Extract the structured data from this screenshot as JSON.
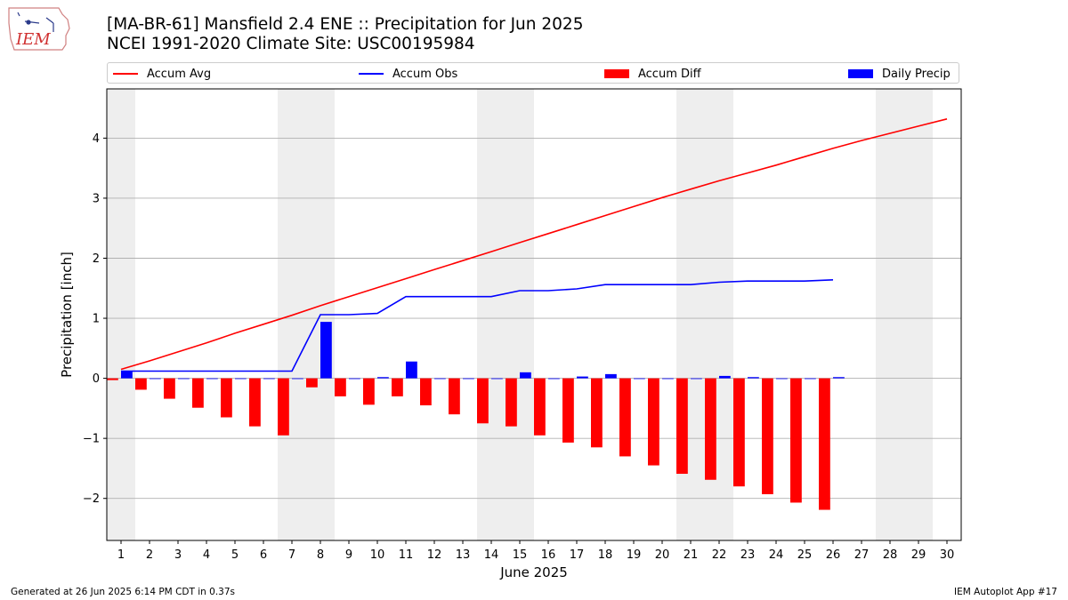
{
  "title": {
    "line1": "[MA-BR-61] Mansfield 2.4 ENE :: Precipitation for Jun 2025",
    "line2": "NCEI 1991-2020 Climate Site: USC00195984"
  },
  "logo_text": "IEM",
  "footer": {
    "left": "Generated at 26 Jun 2025 6:14 PM CDT in 0.37s",
    "right": "IEM Autoplot App #17"
  },
  "colors": {
    "accum_avg": "#ff0000",
    "accum_obs": "#0000ff",
    "accum_diff": "#ff0000",
    "daily_precip": "#0000ff",
    "weekend_shade": "#eeeeee",
    "grid": "#b0b0b0"
  },
  "chart_data": {
    "type": "bar",
    "xlabel": "June 2025",
    "ylabel": "Precipitation [inch]",
    "xlim": [
      0.5,
      30.5
    ],
    "ylim": [
      -2.7,
      4.82
    ],
    "yticks": [
      -2,
      -1,
      0,
      1,
      2,
      3,
      4
    ],
    "ytick_labels": [
      "−2",
      "−1",
      "0",
      "1",
      "2",
      "3",
      "4"
    ],
    "x": [
      1,
      2,
      3,
      4,
      5,
      6,
      7,
      8,
      9,
      10,
      11,
      12,
      13,
      14,
      15,
      16,
      17,
      18,
      19,
      20,
      21,
      22,
      23,
      24,
      25,
      26,
      27,
      28,
      29,
      30
    ],
    "weekend_bands": [
      [
        0.5,
        1.5
      ],
      [
        6.5,
        8.5
      ],
      [
        13.5,
        15.5
      ],
      [
        20.5,
        22.5
      ],
      [
        27.5,
        29.5
      ]
    ],
    "grid": true,
    "legend_position": "top",
    "legend": [
      "Accum Avg",
      "Accum Obs",
      "Accum Diff",
      "Daily Precip"
    ],
    "series": [
      {
        "name": "Accum Avg",
        "kind": "line",
        "x": [
          1,
          2,
          3,
          4,
          5,
          6,
          7,
          8,
          9,
          10,
          11,
          12,
          13,
          14,
          15,
          16,
          17,
          18,
          19,
          20,
          21,
          22,
          23,
          24,
          25,
          26,
          27,
          28,
          29,
          30
        ],
        "values": [
          0.15,
          0.29,
          0.44,
          0.59,
          0.75,
          0.9,
          1.05,
          1.21,
          1.36,
          1.51,
          1.66,
          1.81,
          1.96,
          2.11,
          2.26,
          2.41,
          2.56,
          2.71,
          2.86,
          3.01,
          3.15,
          3.29,
          3.42,
          3.55,
          3.69,
          3.83,
          3.96,
          4.08,
          4.2,
          4.32
        ]
      },
      {
        "name": "Accum Obs",
        "kind": "line",
        "x": [
          1,
          2,
          3,
          4,
          5,
          6,
          7,
          8,
          9,
          10,
          11,
          12,
          13,
          14,
          15,
          16,
          17,
          18,
          19,
          20,
          21,
          22,
          23,
          24,
          25,
          26
        ],
        "values": [
          0.12,
          0.12,
          0.12,
          0.12,
          0.12,
          0.12,
          0.12,
          1.06,
          1.06,
          1.08,
          1.36,
          1.36,
          1.36,
          1.36,
          1.46,
          1.46,
          1.49,
          1.56,
          1.56,
          1.56,
          1.56,
          1.6,
          1.62,
          1.62,
          1.62,
          1.64
        ]
      },
      {
        "name": "Accum Diff",
        "kind": "bar",
        "x": [
          1,
          2,
          3,
          4,
          5,
          6,
          7,
          8,
          9,
          10,
          11,
          12,
          13,
          14,
          15,
          16,
          17,
          18,
          19,
          20,
          21,
          22,
          23,
          24,
          25,
          26
        ],
        "values": [
          -0.03,
          -0.19,
          -0.34,
          -0.49,
          -0.65,
          -0.8,
          -0.95,
          -0.15,
          -0.3,
          -0.44,
          -0.3,
          -0.45,
          -0.6,
          -0.75,
          -0.8,
          -0.95,
          -1.07,
          -1.15,
          -1.3,
          -1.45,
          -1.59,
          -1.69,
          -1.8,
          -1.93,
          -2.07,
          -2.19
        ]
      },
      {
        "name": "Daily Precip",
        "kind": "bar",
        "x": [
          1,
          2,
          3,
          4,
          5,
          6,
          7,
          8,
          9,
          10,
          11,
          12,
          13,
          14,
          15,
          16,
          17,
          18,
          19,
          20,
          21,
          22,
          23,
          24,
          25,
          26
        ],
        "values": [
          0.12,
          0,
          0,
          0,
          0,
          0,
          0,
          0.94,
          0,
          0.02,
          0.28,
          0,
          0,
          0,
          0.1,
          0,
          0.03,
          0.07,
          0,
          0,
          0,
          0.04,
          0.02,
          0,
          0,
          0.02
        ]
      }
    ]
  }
}
